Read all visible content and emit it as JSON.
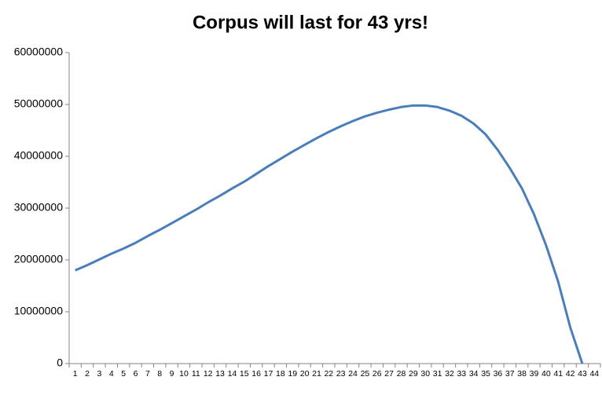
{
  "chart_data": {
    "type": "line",
    "title": "Corpus will last for 43 yrs!",
    "categories": [
      "1",
      "2",
      "3",
      "4",
      "5",
      "6",
      "7",
      "8",
      "9",
      "10",
      "11",
      "12",
      "13",
      "14",
      "15",
      "16",
      "17",
      "18",
      "19",
      "20",
      "21",
      "22",
      "23",
      "24",
      "25",
      "26",
      "27",
      "28",
      "29",
      "30",
      "31",
      "32",
      "33",
      "34",
      "35",
      "36",
      "37",
      "38",
      "39",
      "40",
      "41",
      "42",
      "43",
      "44"
    ],
    "values": [
      18000000,
      19000000,
      20100000,
      21200000,
      22200000,
      23300000,
      24600000,
      25800000,
      27100000,
      28400000,
      29700000,
      31100000,
      32400000,
      33800000,
      35100000,
      36600000,
      38100000,
      39500000,
      40900000,
      42200000,
      43500000,
      44700000,
      45800000,
      46800000,
      47700000,
      48400000,
      49000000,
      49500000,
      49800000,
      49800000,
      49500000,
      48800000,
      47800000,
      46300000,
      44200000,
      41200000,
      37700000,
      33800000,
      28800000,
      22800000,
      15800000,
      7000000,
      0,
      null
    ],
    "color": "#4a7ebb",
    "ylim": [
      0,
      60000000
    ],
    "yticks": [
      0,
      10000000,
      20000000,
      30000000,
      40000000,
      50000000,
      60000000
    ],
    "grid": false
  }
}
